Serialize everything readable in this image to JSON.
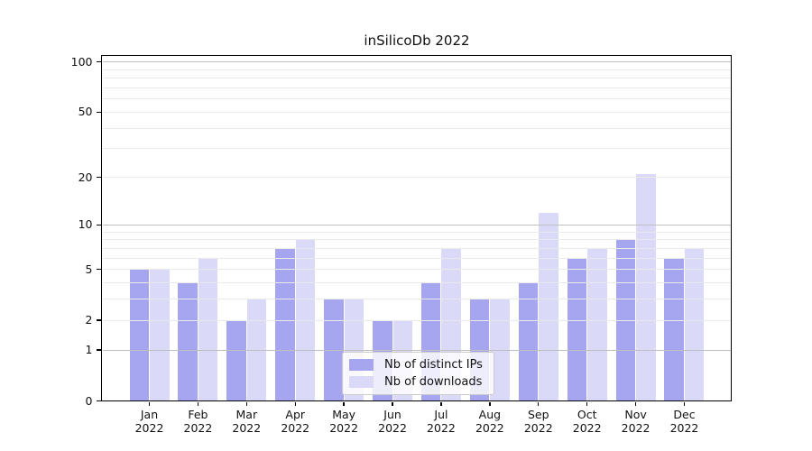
{
  "chart_data": {
    "type": "bar",
    "title": "inSilicoDb 2022",
    "categories": [
      "Jan 2022",
      "Feb 2022",
      "Mar 2022",
      "Apr 2022",
      "May 2022",
      "Jun 2022",
      "Jul 2022",
      "Aug 2022",
      "Sep 2022",
      "Oct 2022",
      "Nov 2022",
      "Dec 2022"
    ],
    "series": [
      {
        "name": "Nb of distinct IPs",
        "color": "#a5a5f0",
        "values": [
          5,
          4,
          2,
          7,
          3,
          2,
          4,
          3,
          4,
          6,
          8,
          6
        ]
      },
      {
        "name": "Nb of downloads",
        "color": "#dadaf8",
        "values": [
          5,
          6,
          3,
          8,
          3,
          2,
          7,
          3,
          12,
          7,
          21,
          7
        ]
      }
    ],
    "xlabel": "",
    "ylabel": "",
    "yscale": "log1p",
    "ylim": [
      0,
      110
    ],
    "yticks": [
      0,
      1,
      2,
      5,
      10,
      20,
      50,
      100
    ],
    "major_gridlines": [
      1,
      10,
      100
    ],
    "minor_gridlines": [
      2,
      3,
      4,
      5,
      6,
      7,
      8,
      9,
      20,
      30,
      40,
      50,
      60,
      70,
      80,
      90
    ],
    "grid": true,
    "legend_position": "lower center"
  },
  "colors": {
    "background": "#ffffff",
    "major_grid": "#bfbfbf",
    "minor_grid": "#e9e9e9",
    "axis": "#000000",
    "text": "#111111",
    "legend_border": "#cccccc"
  }
}
